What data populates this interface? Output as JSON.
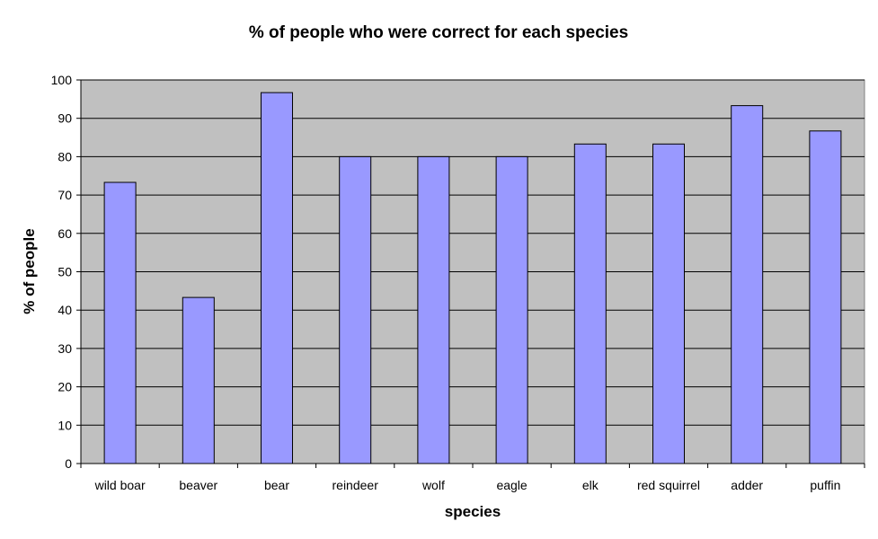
{
  "chart_data": {
    "type": "bar",
    "title": "% of people who were correct for each species",
    "xlabel": "species",
    "ylabel": "% of people",
    "categories": [
      "wild boar",
      "beaver",
      "bear",
      "reindeer",
      "wolf",
      "eagle",
      "elk",
      "red squirrel",
      "adder",
      "puffin"
    ],
    "values": [
      73.3,
      43.3,
      96.7,
      80,
      80,
      80,
      83.3,
      83.3,
      93.3,
      86.7
    ],
    "ylim": [
      0,
      100
    ],
    "yticks": [
      0,
      10,
      20,
      30,
      40,
      50,
      60,
      70,
      80,
      90,
      100
    ],
    "grid": true,
    "legend": "none",
    "colors": {
      "bar_fill": "#9999ff",
      "bar_stroke": "#000000",
      "plot_background": "#c0c0c0",
      "gridline": "#000000"
    }
  }
}
